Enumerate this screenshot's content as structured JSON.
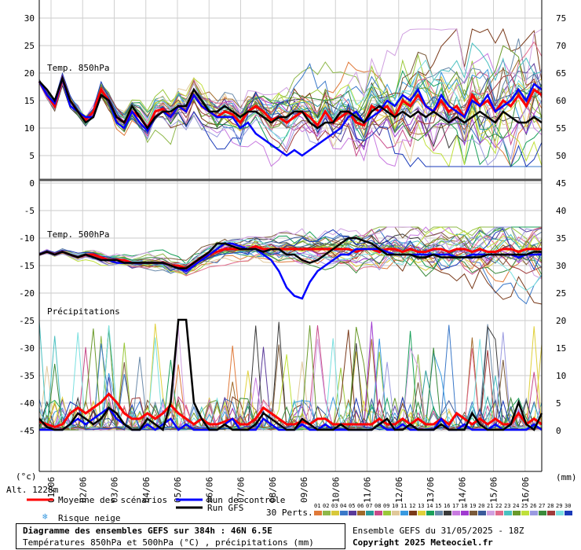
{
  "annotations": {
    "t850": "Temp. 850hPa",
    "t500": "Temp. 500hPa",
    "precip": "Précipitations",
    "alt": "Alt. 1228m",
    "unit_left": "(°c)",
    "unit_right": "(mm)"
  },
  "legend": {
    "mean": "Moyenne des scénarios",
    "control": "Run de contrôle",
    "gfs": "Run GFS",
    "snow": "Risque neige",
    "perts": "30 Perts."
  },
  "footer": {
    "title": "Diagramme des ensembles GEFS sur 384h : 46N 6.5E",
    "subtitle": "Températures 850hPa et 500hPa (°C) , précipitations (mm)",
    "run": "Ensemble GEFS du 31/05/2025 - 18Z",
    "copyright": "Copyright 2025 Meteociel.fr"
  },
  "pert_colors": [
    "#e07a3a",
    "#8fb84a",
    "#d8c83a",
    "#3a78c8",
    "#5a3a9a",
    "#a06a2a",
    "#2a9a9a",
    "#c84a8a",
    "#9ac83a",
    "#e0c89a",
    "#3a9ae0",
    "#7a3a1a",
    "#e0d03a",
    "#1aa05a",
    "#6a8aaa",
    "#3a3a3a",
    "#c87ae0",
    "#a03ad0",
    "#7a5a3a",
    "#3a5a9a",
    "#d0a0e0",
    "#e06a8a",
    "#4ac0c0",
    "#6a9a2a",
    "#c0e03a",
    "#9a9ae0",
    "#3a8a3a",
    "#a03a3a",
    "#7ae0e0",
    "#1a3ab8"
  ],
  "chart_data": {
    "type": "line",
    "x_tick_labels": [
      "01/06",
      "02/06",
      "03/06",
      "04/06",
      "05/06",
      "06/06",
      "07/06",
      "08/06",
      "09/06",
      "10/06",
      "11/06",
      "12/06",
      "13/06",
      "14/06",
      "15/06",
      "16/06"
    ],
    "left_axis_ticks": [
      30,
      25,
      20,
      15,
      10,
      5,
      0,
      -5,
      -10,
      -15,
      -20,
      -25,
      -30,
      -35,
      -40,
      -45
    ],
    "right_axis_ticks": [
      75,
      70,
      65,
      60,
      55,
      50,
      45,
      40,
      35,
      30,
      25,
      20,
      15,
      10,
      5,
      0
    ],
    "series": [
      {
        "key": "t850_mean",
        "name": "Moyenne des scénarios",
        "color": "#ff0000",
        "values": [
          18.5,
          16,
          14,
          19,
          15,
          13,
          11.5,
          13,
          17,
          15,
          12,
          11,
          13,
          12,
          10,
          13,
          13.5,
          12,
          14,
          13,
          16,
          14,
          13,
          12,
          13,
          12.5,
          11,
          13,
          14,
          13,
          11.5,
          12,
          11,
          12,
          13,
          12,
          10.5,
          13,
          11,
          12,
          13,
          11,
          10.5,
          14,
          13,
          14,
          12,
          15,
          14,
          16,
          14,
          13,
          15,
          13,
          14,
          12,
          16,
          14,
          15,
          13,
          15,
          14,
          16,
          14,
          17,
          16
        ]
      },
      {
        "key": "t850_control",
        "name": "Run de contrôle",
        "color": "#0000ff",
        "values": [
          18.5,
          16,
          14.5,
          19,
          14,
          13,
          12,
          12,
          16,
          15,
          11,
          10,
          13,
          11,
          9.5,
          12,
          13,
          12,
          14,
          13,
          16,
          14,
          13,
          12,
          12,
          12,
          10,
          11,
          9,
          8,
          7,
          6,
          5,
          6,
          5,
          6,
          7,
          8,
          9,
          10,
          12,
          13,
          11,
          12,
          13,
          15,
          14,
          16,
          15,
          17,
          14,
          13,
          16,
          14,
          13,
          12,
          15,
          14,
          16,
          13,
          14,
          15,
          17,
          15,
          18,
          17
        ]
      },
      {
        "key": "t850_gfs",
        "name": "Run GFS",
        "color": "#000000",
        "values": [
          18.5,
          17,
          15,
          19,
          15,
          13,
          11,
          12,
          16,
          15,
          12,
          11,
          14,
          12,
          10,
          12,
          13,
          13,
          14,
          14,
          17,
          15,
          13,
          13,
          14,
          13,
          12,
          13,
          13,
          12,
          11,
          12,
          12,
          13,
          13,
          11,
          10,
          11,
          11,
          13,
          13,
          12,
          11,
          13,
          14,
          13,
          12,
          13,
          12,
          13,
          12,
          13,
          12,
          11,
          12,
          11,
          12,
          13,
          12,
          11,
          13,
          12,
          11,
          11,
          12,
          11
        ]
      },
      {
        "key": "t500_mean",
        "name": "Moyenne des scénarios",
        "color": "#ff0000",
        "values": [
          -13,
          -12.5,
          -13,
          -12.5,
          -13,
          -13.5,
          -13,
          -13,
          -13.5,
          -14,
          -14,
          -14,
          -14.5,
          -14.5,
          -14.5,
          -14.5,
          -14.5,
          -15,
          -15,
          -15.5,
          -14.5,
          -13.5,
          -13,
          -12.5,
          -12,
          -12,
          -12,
          -12,
          -11.5,
          -12,
          -12,
          -12,
          -12,
          -12,
          -12,
          -12,
          -12,
          -12,
          -12,
          -12,
          -12,
          -12.5,
          -12,
          -12,
          -12.5,
          -12,
          -12,
          -12.5,
          -12,
          -12.5,
          -12.5,
          -12,
          -12,
          -12.5,
          -12,
          -12,
          -12.5,
          -12,
          -12.5,
          -12.5,
          -12,
          -12,
          -12.5,
          -12,
          -12,
          -12
        ]
      },
      {
        "key": "t500_control",
        "name": "Run de contrôle",
        "color": "#0000ff",
        "values": [
          -13,
          -12.5,
          -13,
          -12.5,
          -13,
          -13.5,
          -13,
          -13.5,
          -14,
          -14,
          -14.5,
          -14.5,
          -14.5,
          -14.5,
          -14.5,
          -14.5,
          -14.5,
          -15,
          -15.5,
          -16,
          -15,
          -14,
          -13,
          -12,
          -11,
          -11,
          -11.5,
          -12,
          -12,
          -13,
          -14,
          -16,
          -19,
          -20.5,
          -21,
          -18,
          -16,
          -15,
          -14,
          -13,
          -13,
          -12,
          -12,
          -12,
          -12,
          -12.5,
          -13,
          -13,
          -13,
          -13,
          -13,
          -13,
          -13,
          -13,
          -13.5,
          -13.5,
          -13,
          -13,
          -13,
          -13,
          -13,
          -13,
          -13.5,
          -13,
          -13,
          -13
        ]
      },
      {
        "key": "t500_gfs",
        "name": "Run GFS",
        "color": "#000000",
        "values": [
          -13,
          -12.5,
          -13,
          -12.5,
          -13,
          -13.5,
          -13,
          -13.5,
          -14,
          -14,
          -14,
          -14.5,
          -14.5,
          -14.5,
          -14.5,
          -14.5,
          -14.5,
          -15,
          -15.5,
          -15.5,
          -14.5,
          -13.5,
          -12.5,
          -11,
          -11,
          -11.5,
          -12,
          -12,
          -12,
          -12.5,
          -12,
          -12,
          -13,
          -13,
          -14,
          -14.5,
          -14,
          -13,
          -12,
          -11,
          -10,
          -10,
          -10.5,
          -11,
          -12,
          -13,
          -13,
          -13,
          -13,
          -13.5,
          -13.5,
          -13,
          -13.5,
          -13.5,
          -13.5,
          -13.5,
          -13.5,
          -13.5,
          -13,
          -13,
          -13,
          -13,
          -13,
          -13,
          -12.5,
          -12.5
        ]
      },
      {
        "key": "precip_mean",
        "name": "Moyenne des scénarios",
        "color": "#ff0000",
        "values": [
          1.5,
          1,
          0.5,
          1,
          3,
          4,
          3,
          4,
          5,
          6.5,
          5,
          3,
          2,
          2,
          3,
          2,
          3,
          4.5,
          3,
          2,
          1,
          2,
          1,
          1,
          1.5,
          2,
          1,
          1,
          2,
          4,
          3,
          2,
          1,
          1,
          1.5,
          1,
          2,
          2,
          1,
          1,
          1,
          1,
          1,
          1,
          2,
          1,
          1,
          2,
          1,
          2,
          1,
          1,
          2,
          1,
          3,
          2,
          1,
          2,
          1,
          2,
          1,
          1,
          3,
          1,
          2,
          1
        ]
      },
      {
        "key": "precip_control",
        "name": "Run de contrôle",
        "color": "#0000ff",
        "values": [
          0,
          0,
          0,
          0,
          1,
          2,
          1,
          2,
          3,
          4,
          2,
          1,
          0,
          0,
          1,
          0,
          1,
          2,
          0,
          1,
          0,
          0,
          0,
          0,
          1,
          2,
          0,
          0,
          0,
          2,
          1,
          0,
          0,
          0,
          1,
          0,
          0,
          1,
          0,
          0,
          0,
          0,
          0,
          0,
          1,
          0,
          0,
          1,
          0,
          0,
          0,
          0,
          2,
          0,
          0,
          1,
          0,
          0,
          0,
          1,
          0,
          0,
          0,
          0,
          1,
          0
        ]
      },
      {
        "key": "precip_gfs",
        "name": "Run GFS",
        "color": "#000000",
        "values": [
          2,
          0.5,
          0,
          0,
          1,
          3,
          2,
          1,
          2,
          4,
          3,
          1,
          0,
          0,
          2,
          1,
          0,
          5,
          20,
          20,
          5,
          2,
          0,
          0,
          1,
          0,
          0,
          0,
          1,
          3,
          2,
          1,
          0,
          0,
          2,
          1,
          0,
          0,
          0,
          1,
          0,
          0,
          0,
          0,
          1,
          2,
          0,
          0,
          1,
          0,
          0,
          0,
          1,
          0,
          0,
          0,
          3,
          1,
          0,
          0,
          0,
          1,
          5,
          1,
          0,
          3
        ]
      }
    ]
  }
}
